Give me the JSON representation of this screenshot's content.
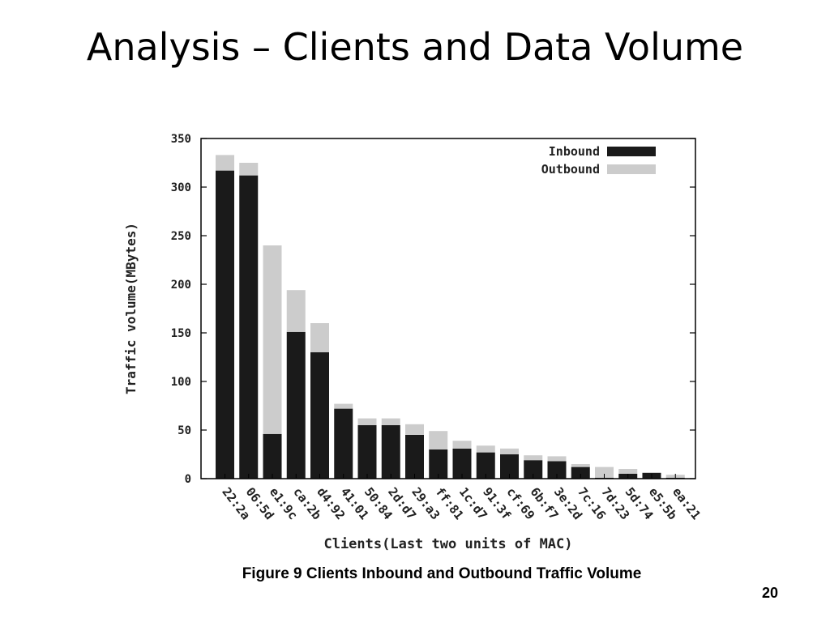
{
  "slide": {
    "title": "Analysis – Clients and Data Volume",
    "caption": "Figure 9 Clients Inbound and Outbound Traffic Volume",
    "page_number": "20"
  },
  "chart_data": {
    "type": "bar",
    "stacked": true,
    "title": "",
    "xlabel": "Clients(Last two units of MAC)",
    "ylabel": "Traffic volume(MBytes)",
    "ylim": [
      0,
      350
    ],
    "yticks": [
      0,
      50,
      100,
      150,
      200,
      250,
      300,
      350
    ],
    "grid": false,
    "legend_position": "top-right",
    "categories": [
      "22:2a",
      "06:5d",
      "e1:9c",
      "ca:2b",
      "d4:92",
      "41:01",
      "50:84",
      "2d:d7",
      "29:a3",
      "ff:81",
      "1c:d7",
      "91:3f",
      "cf:69",
      "6b:f7",
      "3e:2d",
      "7c:16",
      "7d:23",
      "5d:74",
      "e5:5b",
      "ea:21"
    ],
    "series": [
      {
        "name": "Inbound",
        "color": "#1a1a1a",
        "values": [
          317,
          312,
          46,
          151,
          130,
          72,
          55,
          55,
          45,
          30,
          31,
          27,
          25,
          19,
          18,
          12,
          1,
          5,
          6,
          1
        ]
      },
      {
        "name": "Outbound",
        "color": "#cccccc",
        "values": [
          16,
          13,
          194,
          43,
          30,
          5,
          7,
          7,
          11,
          19,
          8,
          7,
          6,
          5,
          5,
          3,
          11,
          5,
          0,
          3
        ]
      }
    ]
  }
}
